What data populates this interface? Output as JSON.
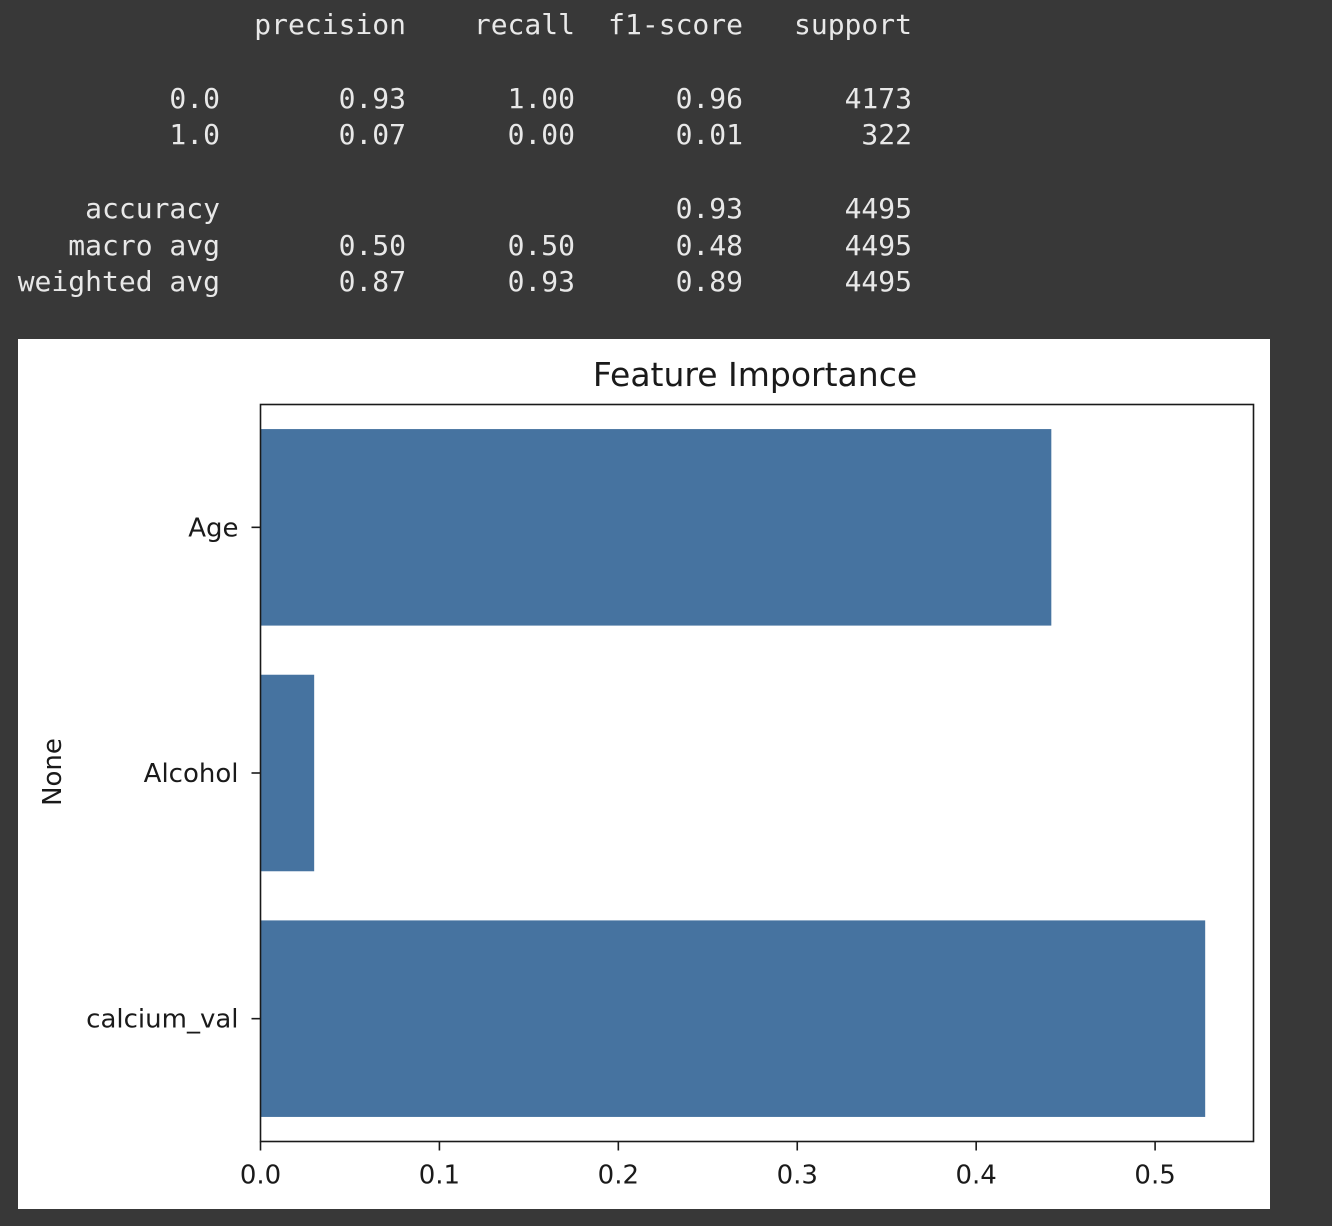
{
  "report": {
    "headers": [
      "precision",
      "recall",
      "f1-score",
      "support"
    ],
    "rows": [
      {
        "label": "0.0",
        "precision": "0.93",
        "recall": "1.00",
        "f1": "0.96",
        "support": "4173"
      },
      {
        "label": "1.0",
        "precision": "0.07",
        "recall": "0.00",
        "f1": "0.01",
        "support": "322"
      }
    ],
    "accuracy": {
      "label": "accuracy",
      "f1": "0.93",
      "support": "4495"
    },
    "summary": [
      {
        "label": "macro avg",
        "precision": "0.50",
        "recall": "0.50",
        "f1": "0.48",
        "support": "4495"
      },
      {
        "label": "weighted avg",
        "precision": "0.87",
        "recall": "0.93",
        "f1": "0.89",
        "support": "4495"
      }
    ]
  },
  "chart_data": {
    "type": "bar",
    "orientation": "horizontal",
    "title": "Feature Importance",
    "xlabel": "",
    "ylabel": "None",
    "categories": [
      "Age",
      "Alcohol",
      "calcium_val"
    ],
    "values": [
      0.442,
      0.03,
      0.528
    ],
    "xlim": [
      0,
      0.555
    ],
    "xticks": [
      "0.0",
      "0.1",
      "0.2",
      "0.3",
      "0.4",
      "0.5"
    ],
    "bar_color": "#4673a0",
    "grid": false,
    "legend": "none"
  }
}
